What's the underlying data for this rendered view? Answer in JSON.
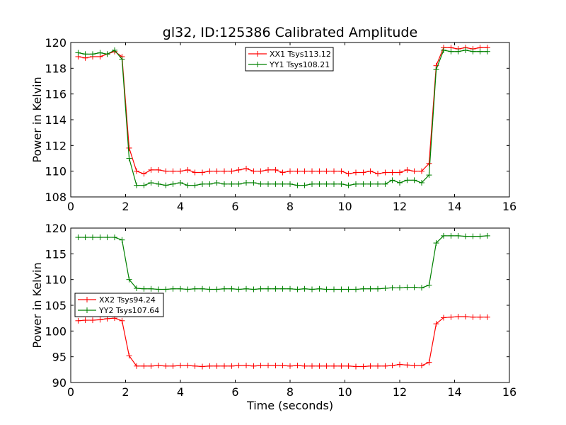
{
  "title": "gl32, ID:125386 Calibrated Amplitude",
  "colors": {
    "red": "#ff0000",
    "green": "#008000",
    "axes": "#000000"
  },
  "chart_data": [
    {
      "type": "line",
      "title": "gl32, ID:125386 Calibrated Amplitude",
      "xlabel": "",
      "ylabel": "Power in Kelvin",
      "xlim": [
        0,
        16
      ],
      "ylim": [
        108,
        120
      ],
      "xticks": [
        0,
        2,
        4,
        6,
        8,
        10,
        12,
        14,
        16
      ],
      "yticks": [
        108,
        110,
        112,
        114,
        116,
        118,
        120
      ],
      "grid": false,
      "legend_position": "top-center",
      "x": [
        0.27,
        0.53,
        0.8,
        1.07,
        1.33,
        1.6,
        1.87,
        2.13,
        2.4,
        2.67,
        2.93,
        3.2,
        3.47,
        3.73,
        4.0,
        4.27,
        4.53,
        4.8,
        5.07,
        5.33,
        5.6,
        5.87,
        6.13,
        6.4,
        6.67,
        6.93,
        7.2,
        7.47,
        7.73,
        8.0,
        8.27,
        8.53,
        8.8,
        9.07,
        9.33,
        9.6,
        9.87,
        10.13,
        10.4,
        10.67,
        10.93,
        11.2,
        11.47,
        11.73,
        12.0,
        12.27,
        12.53,
        12.8,
        13.07,
        13.33,
        13.6,
        13.87,
        14.13,
        14.4,
        14.67,
        14.93,
        15.2
      ],
      "series": [
        {
          "name": "XX1 Tsys113.12",
          "color": "#ff0000",
          "values": [
            118.9,
            118.8,
            118.9,
            118.9,
            119.1,
            119.3,
            118.9,
            111.8,
            110.0,
            109.8,
            110.1,
            110.1,
            110.0,
            110.0,
            110.0,
            110.1,
            109.9,
            109.9,
            110.0,
            110.0,
            110.0,
            110.0,
            110.1,
            110.2,
            110.0,
            110.0,
            110.1,
            110.1,
            109.9,
            110.0,
            110.0,
            110.0,
            110.0,
            110.0,
            110.0,
            110.0,
            110.0,
            109.8,
            109.9,
            109.9,
            110.0,
            109.8,
            109.9,
            109.9,
            109.9,
            110.1,
            110.0,
            110.0,
            110.6,
            118.2,
            119.6,
            119.6,
            119.5,
            119.6,
            119.5,
            119.6,
            119.6
          ]
        },
        {
          "name": "YY1 Tsys108.21",
          "color": "#008000",
          "values": [
            119.2,
            119.1,
            119.1,
            119.2,
            119.1,
            119.4,
            118.7,
            111.0,
            108.9,
            108.9,
            109.1,
            109.0,
            108.9,
            109.0,
            109.1,
            108.9,
            108.9,
            109.0,
            109.0,
            109.1,
            109.0,
            109.0,
            109.0,
            109.1,
            109.1,
            109.0,
            109.0,
            109.0,
            109.0,
            109.0,
            108.9,
            108.9,
            109.0,
            109.0,
            109.0,
            109.0,
            109.0,
            108.9,
            109.0,
            109.0,
            109.0,
            109.0,
            109.0,
            109.3,
            109.1,
            109.3,
            109.3,
            109.1,
            109.7,
            117.9,
            119.4,
            119.3,
            119.3,
            119.4,
            119.3,
            119.3,
            119.3
          ]
        }
      ]
    },
    {
      "type": "line",
      "title": "",
      "xlabel": "Time (seconds)",
      "ylabel": "Power in Kelvin",
      "xlim": [
        0,
        16
      ],
      "ylim": [
        90,
        120
      ],
      "xticks": [
        0,
        2,
        4,
        6,
        8,
        10,
        12,
        14,
        16
      ],
      "yticks": [
        90,
        95,
        100,
        105,
        110,
        115,
        120
      ],
      "grid": false,
      "legend_position": "center-left",
      "x": [
        0.27,
        0.53,
        0.8,
        1.07,
        1.33,
        1.6,
        1.87,
        2.13,
        2.4,
        2.67,
        2.93,
        3.2,
        3.47,
        3.73,
        4.0,
        4.27,
        4.53,
        4.8,
        5.07,
        5.33,
        5.6,
        5.87,
        6.13,
        6.4,
        6.67,
        6.93,
        7.2,
        7.47,
        7.73,
        8.0,
        8.27,
        8.53,
        8.8,
        9.07,
        9.33,
        9.6,
        9.87,
        10.13,
        10.4,
        10.67,
        10.93,
        11.2,
        11.47,
        11.73,
        12.0,
        12.27,
        12.53,
        12.8,
        13.07,
        13.33,
        13.6,
        13.87,
        14.13,
        14.4,
        14.67,
        14.93,
        15.2
      ],
      "series": [
        {
          "name": "XX2 Tsys94.24",
          "color": "#ff0000",
          "values": [
            102.0,
            102.1,
            102.1,
            102.2,
            102.4,
            102.5,
            102.0,
            95.2,
            93.2,
            93.2,
            93.2,
            93.3,
            93.2,
            93.2,
            93.3,
            93.3,
            93.2,
            93.1,
            93.2,
            93.2,
            93.2,
            93.2,
            93.3,
            93.3,
            93.2,
            93.3,
            93.3,
            93.3,
            93.3,
            93.2,
            93.3,
            93.2,
            93.2,
            93.2,
            93.2,
            93.2,
            93.2,
            93.2,
            93.1,
            93.1,
            93.2,
            93.2,
            93.2,
            93.3,
            93.5,
            93.4,
            93.3,
            93.3,
            93.9,
            101.4,
            102.6,
            102.7,
            102.8,
            102.8,
            102.7,
            102.7,
            102.7
          ]
        },
        {
          "name": "YY2 Tsys107.64",
          "color": "#008000",
          "values": [
            118.2,
            118.2,
            118.2,
            118.2,
            118.2,
            118.2,
            117.7,
            110.0,
            108.3,
            108.2,
            108.2,
            108.1,
            108.1,
            108.2,
            108.2,
            108.1,
            108.2,
            108.2,
            108.1,
            108.1,
            108.2,
            108.2,
            108.1,
            108.2,
            108.1,
            108.2,
            108.2,
            108.2,
            108.2,
            108.2,
            108.1,
            108.2,
            108.1,
            108.2,
            108.1,
            108.1,
            108.1,
            108.1,
            108.1,
            108.2,
            108.2,
            108.2,
            108.3,
            108.4,
            108.4,
            108.5,
            108.5,
            108.4,
            108.9,
            117.1,
            118.5,
            118.5,
            118.5,
            118.4,
            118.4,
            118.4,
            118.5
          ]
        }
      ]
    }
  ]
}
